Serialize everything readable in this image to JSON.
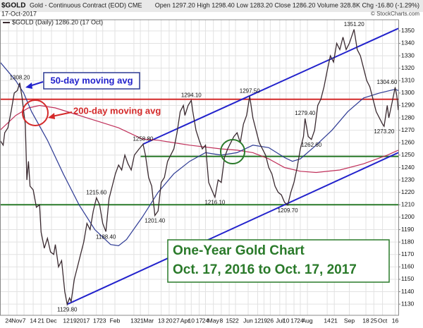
{
  "chart_data": {
    "type": "line",
    "header": {
      "symbol": "$GOLD",
      "name": "Gold - Continuous Contract (EOD) CME",
      "date": "17-Oct-2017",
      "quote": "Open 1297.20 High 1298.40 Low 1283.20 Close 1286.20 Volume 328.8K Chg -16.80 (-1.29%)",
      "legend": "$GOLD (Daily) 1286.20 (17 Oct)",
      "credit": "© StockCharts.com"
    },
    "annotations": [
      "50-day moving avg",
      "200-day moving avg",
      "One-Year Gold Chart",
      "Oct. 17, 2016 to Oct. 17, 2017"
    ],
    "xlim": [
      0,
      252
    ],
    "ylim": [
      1121,
      1359
    ],
    "grid": true,
    "yticks": [
      1130,
      1140,
      1150,
      1160,
      1170,
      1180,
      1190,
      1200,
      1210,
      1220,
      1230,
      1240,
      1250,
      1260,
      1270,
      1280,
      1290,
      1300,
      1310,
      1320,
      1330,
      1340,
      1350
    ],
    "xticks": [
      {
        "value": 5.4,
        "label": "24"
      },
      {
        "value": 10.7,
        "label": "Nov"
      },
      {
        "value": 15.2,
        "label": "7"
      },
      {
        "value": 21,
        "label": "14"
      },
      {
        "value": 26,
        "label": "21"
      },
      {
        "value": 32.6,
        "label": "Dec"
      },
      {
        "value": 42,
        "label": "12"
      },
      {
        "value": 46.4,
        "label": "19"
      },
      {
        "value": 52.6,
        "label": "2017"
      },
      {
        "value": 61,
        "label": "17"
      },
      {
        "value": 65,
        "label": "23"
      },
      {
        "value": 72.7,
        "label": "Feb"
      },
      {
        "value": 84.7,
        "label": "13"
      },
      {
        "value": 88.8,
        "label": "21"
      },
      {
        "value": 94,
        "label": "Mar"
      },
      {
        "value": 102,
        "label": "13"
      },
      {
        "value": 107,
        "label": "20"
      },
      {
        "value": 111.5,
        "label": "27"
      },
      {
        "value": 117,
        "label": "Apr"
      },
      {
        "value": 121,
        "label": "10"
      },
      {
        "value": 126,
        "label": "17"
      },
      {
        "value": 130,
        "label": "24"
      },
      {
        "value": 135,
        "label": "May"
      },
      {
        "value": 140,
        "label": "8"
      },
      {
        "value": 145,
        "label": "15"
      },
      {
        "value": 149,
        "label": "22"
      },
      {
        "value": 157,
        "label": "Jun"
      },
      {
        "value": 163,
        "label": "12"
      },
      {
        "value": 167,
        "label": "19"
      },
      {
        "value": 171,
        "label": "26"
      },
      {
        "value": 177,
        "label": "Jul"
      },
      {
        "value": 181,
        "label": "10"
      },
      {
        "value": 186,
        "label": "17"
      },
      {
        "value": 190,
        "label": "24"
      },
      {
        "value": 194.5,
        "label": "Aug"
      },
      {
        "value": 207,
        "label": "14"
      },
      {
        "value": 211.5,
        "label": "21"
      },
      {
        "value": 221,
        "label": "Sep"
      },
      {
        "value": 231.5,
        "label": "18"
      },
      {
        "value": 236.5,
        "label": "25"
      },
      {
        "value": 242,
        "label": "Oct"
      },
      {
        "value": 250,
        "label": "16"
      }
    ],
    "series": [
      {
        "color": "#3a2a30",
        "x": [
          0,
          2,
          3,
          5,
          7,
          9,
          11,
          12.5,
          14,
          15,
          16,
          17,
          18,
          19,
          21,
          23,
          25,
          26,
          28,
          30,
          32,
          34,
          35,
          37,
          39,
          41,
          42.5,
          44,
          45,
          47,
          49,
          51,
          53,
          55,
          57,
          59,
          61,
          63,
          65,
          67,
          69,
          71,
          73,
          75,
          77,
          79,
          81,
          83,
          85,
          88,
          90.5,
          92,
          94,
          96,
          98,
          100,
          102,
          104,
          106,
          108,
          110,
          112,
          114,
          116,
          117,
          119,
          121,
          122,
          124,
          126,
          128,
          130,
          132,
          134,
          136,
          138,
          140,
          142,
          144,
          146,
          148,
          150,
          152,
          154,
          156,
          158,
          160,
          162,
          164,
          166,
          168,
          170,
          172,
          174,
          176,
          178,
          180,
          182,
          184,
          186,
          188,
          190,
          192,
          193,
          195,
          197,
          199,
          201,
          203,
          205,
          207,
          209,
          211,
          213,
          215,
          217,
          219,
          221,
          224,
          226,
          228,
          230,
          232,
          234,
          236,
          238,
          240,
          242,
          243,
          245,
          246,
          248,
          250,
          251,
          252
        ],
        "values": [
          1262,
          1258,
          1268,
          1272,
          1285,
          1300,
          1302,
          1308.2,
          1296,
          1285,
          1275,
          1230,
          1245,
          1225,
          1222,
          1208,
          1210,
          1188,
          1175,
          1183,
          1172,
          1170,
          1178,
          1160,
          1165,
          1140,
          1129.8,
          1135,
          1132,
          1150,
          1160,
          1170,
          1180,
          1195,
          1190,
          1205,
          1215.6,
          1210,
          1195,
          1188.4,
          1215,
          1225,
          1235,
          1242,
          1238,
          1250,
          1243,
          1238,
          1250,
          1255,
          1258.8,
          1250,
          1232,
          1225,
          1201.4,
          1205,
          1228,
          1232,
          1245,
          1250,
          1255,
          1268,
          1285,
          1290,
          1282,
          1290,
          1294.1,
          1285,
          1270,
          1262,
          1255,
          1258,
          1228,
          1222,
          1216.1,
          1230,
          1228,
          1248,
          1255,
          1260,
          1265,
          1268,
          1260,
          1275,
          1282,
          1297.5,
          1280,
          1270,
          1260,
          1255,
          1250,
          1240,
          1235,
          1225,
          1220,
          1218,
          1212,
          1209.7,
          1220,
          1228,
          1240,
          1255,
          1265,
          1279.4,
          1265,
          1262.6,
          1270,
          1290,
          1295,
          1305,
          1318,
          1330,
          1325,
          1340,
          1335,
          1345,
          1335,
          1340,
          1351.2,
          1335,
          1330,
          1320,
          1310,
          1305,
          1295,
          1285,
          1280,
          1275,
          1273.2,
          1290,
          1280,
          1292,
          1304.6,
          1298,
          1286.2
        ]
      },
      {
        "color": "#2d3a94",
        "x": [
          0,
          10,
          15,
          20,
          30,
          40,
          50,
          60,
          70,
          75,
          80,
          90,
          100,
          110,
          120,
          130,
          140,
          150,
          160,
          170,
          180,
          185,
          190,
          200,
          210,
          220,
          230,
          240,
          250,
          252
        ],
        "values": [
          1325,
          1310,
          1300,
          1285,
          1262,
          1235,
          1210,
          1190,
          1178,
          1177,
          1182,
          1200,
          1220,
          1235,
          1245,
          1252,
          1250,
          1252,
          1258,
          1256,
          1248,
          1245,
          1247,
          1258,
          1270,
          1285,
          1296,
          1300,
          1303,
          1302
        ]
      },
      {
        "color": "#c0305a",
        "x": [
          0,
          10,
          18,
          25,
          35,
          45,
          55,
          65,
          75,
          90,
          100,
          120,
          140,
          150,
          160,
          170,
          180,
          190,
          200,
          215,
          230,
          245,
          252
        ],
        "values": [
          1270,
          1282,
          1288,
          1290,
          1288,
          1284,
          1280,
          1276,
          1272,
          1263,
          1262,
          1258,
          1255,
          1254,
          1252,
          1247,
          1240,
          1237,
          1236,
          1238,
          1243,
          1250,
          1254
        ]
      }
    ],
    "lines": [
      {
        "color": "#d42a2a",
        "x": [
          0,
          252
        ],
        "values": [
          1295,
          1295
        ]
      },
      {
        "color": "#2a7a2a",
        "x": [
          0,
          252
        ],
        "values": [
          1210,
          1210
        ]
      },
      {
        "color": "#2a7a2a",
        "x": [
          89,
          252
        ],
        "values": [
          1249,
          1249
        ]
      },
      {
        "color": "#2222cc",
        "x": [
          90.5,
          252
        ],
        "values": [
          1258.8,
          1352
        ]
      },
      {
        "color": "#2222cc",
        "x": [
          42.5,
          252
        ],
        "values": [
          1129.8,
          1252
        ]
      }
    ],
    "point_labels": [
      {
        "x": 12.5,
        "value": 1308.2,
        "label": "1308.20"
      },
      {
        "x": 42.5,
        "value": 1129.8,
        "label": "1129.80"
      },
      {
        "x": 61,
        "value": 1215.6,
        "label": "1215.60"
      },
      {
        "x": 67,
        "value": 1188.4,
        "label": "1188.40"
      },
      {
        "x": 90.5,
        "value": 1258.8,
        "label": "1258.80"
      },
      {
        "x": 98,
        "value": 1201.4,
        "label": "1201.40"
      },
      {
        "x": 121,
        "value": 1294.1,
        "label": "1294.10"
      },
      {
        "x": 136,
        "value": 1216.1,
        "label": "1216.10"
      },
      {
        "x": 158,
        "value": 1297.5,
        "label": "1297.50"
      },
      {
        "x": 182,
        "value": 1209.7,
        "label": "1209.70"
      },
      {
        "x": 193,
        "value": 1279.4,
        "label": "1279.40"
      },
      {
        "x": 197,
        "value": 1262.6,
        "label": "1262.60"
      },
      {
        "x": 224,
        "value": 1351.2,
        "label": "1351.20"
      },
      {
        "x": 243,
        "value": 1273.2,
        "label": "1273.20"
      },
      {
        "x": 250,
        "value": 1304.6,
        "label": "1304.60"
      }
    ]
  }
}
